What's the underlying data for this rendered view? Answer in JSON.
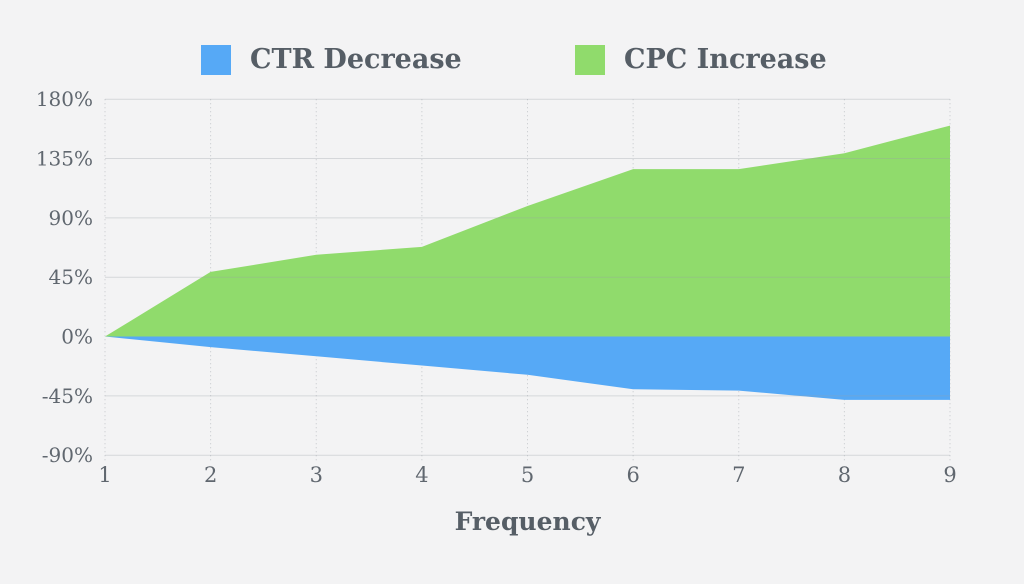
{
  "page": {
    "background": "#f3f3f4"
  },
  "chart_data": {
    "type": "area",
    "title": "",
    "xlabel": "Frequency",
    "ylabel": "",
    "x": [
      1,
      2,
      3,
      4,
      5,
      6,
      7,
      8,
      9
    ],
    "series": [
      {
        "name": "CTR Decrease",
        "color": "#56a9f6",
        "values": [
          0,
          -8,
          -15,
          -22,
          -29,
          -40,
          -41,
          -48,
          -48
        ]
      },
      {
        "name": "CPC Increase",
        "color": "#90db6c",
        "values": [
          0,
          49,
          62,
          68,
          99,
          127,
          127,
          139,
          160
        ]
      }
    ],
    "xlim": [
      1,
      9
    ],
    "ylim": [
      -90,
      180
    ],
    "xtick_labels": [
      "1",
      "2",
      "3",
      "4",
      "5",
      "6",
      "7",
      "8",
      "9"
    ],
    "yticks": [
      {
        "value": 180,
        "label": "180%"
      },
      {
        "value": 135,
        "label": "135%"
      },
      {
        "value": 90,
        "label": "90%"
      },
      {
        "value": 45,
        "label": "45%"
      },
      {
        "value": 0,
        "label": "0%"
      },
      {
        "value": -45,
        "label": "-45%"
      },
      {
        "value": -90,
        "label": "-90%"
      }
    ],
    "grid": true,
    "legend_position": "top",
    "colors": {
      "legend_text": "#565e66",
      "tick_text": "#60676f",
      "axis_title_text": "#565e66",
      "gridline": "#9aa0a6",
      "background": "#f3f3f4"
    }
  }
}
